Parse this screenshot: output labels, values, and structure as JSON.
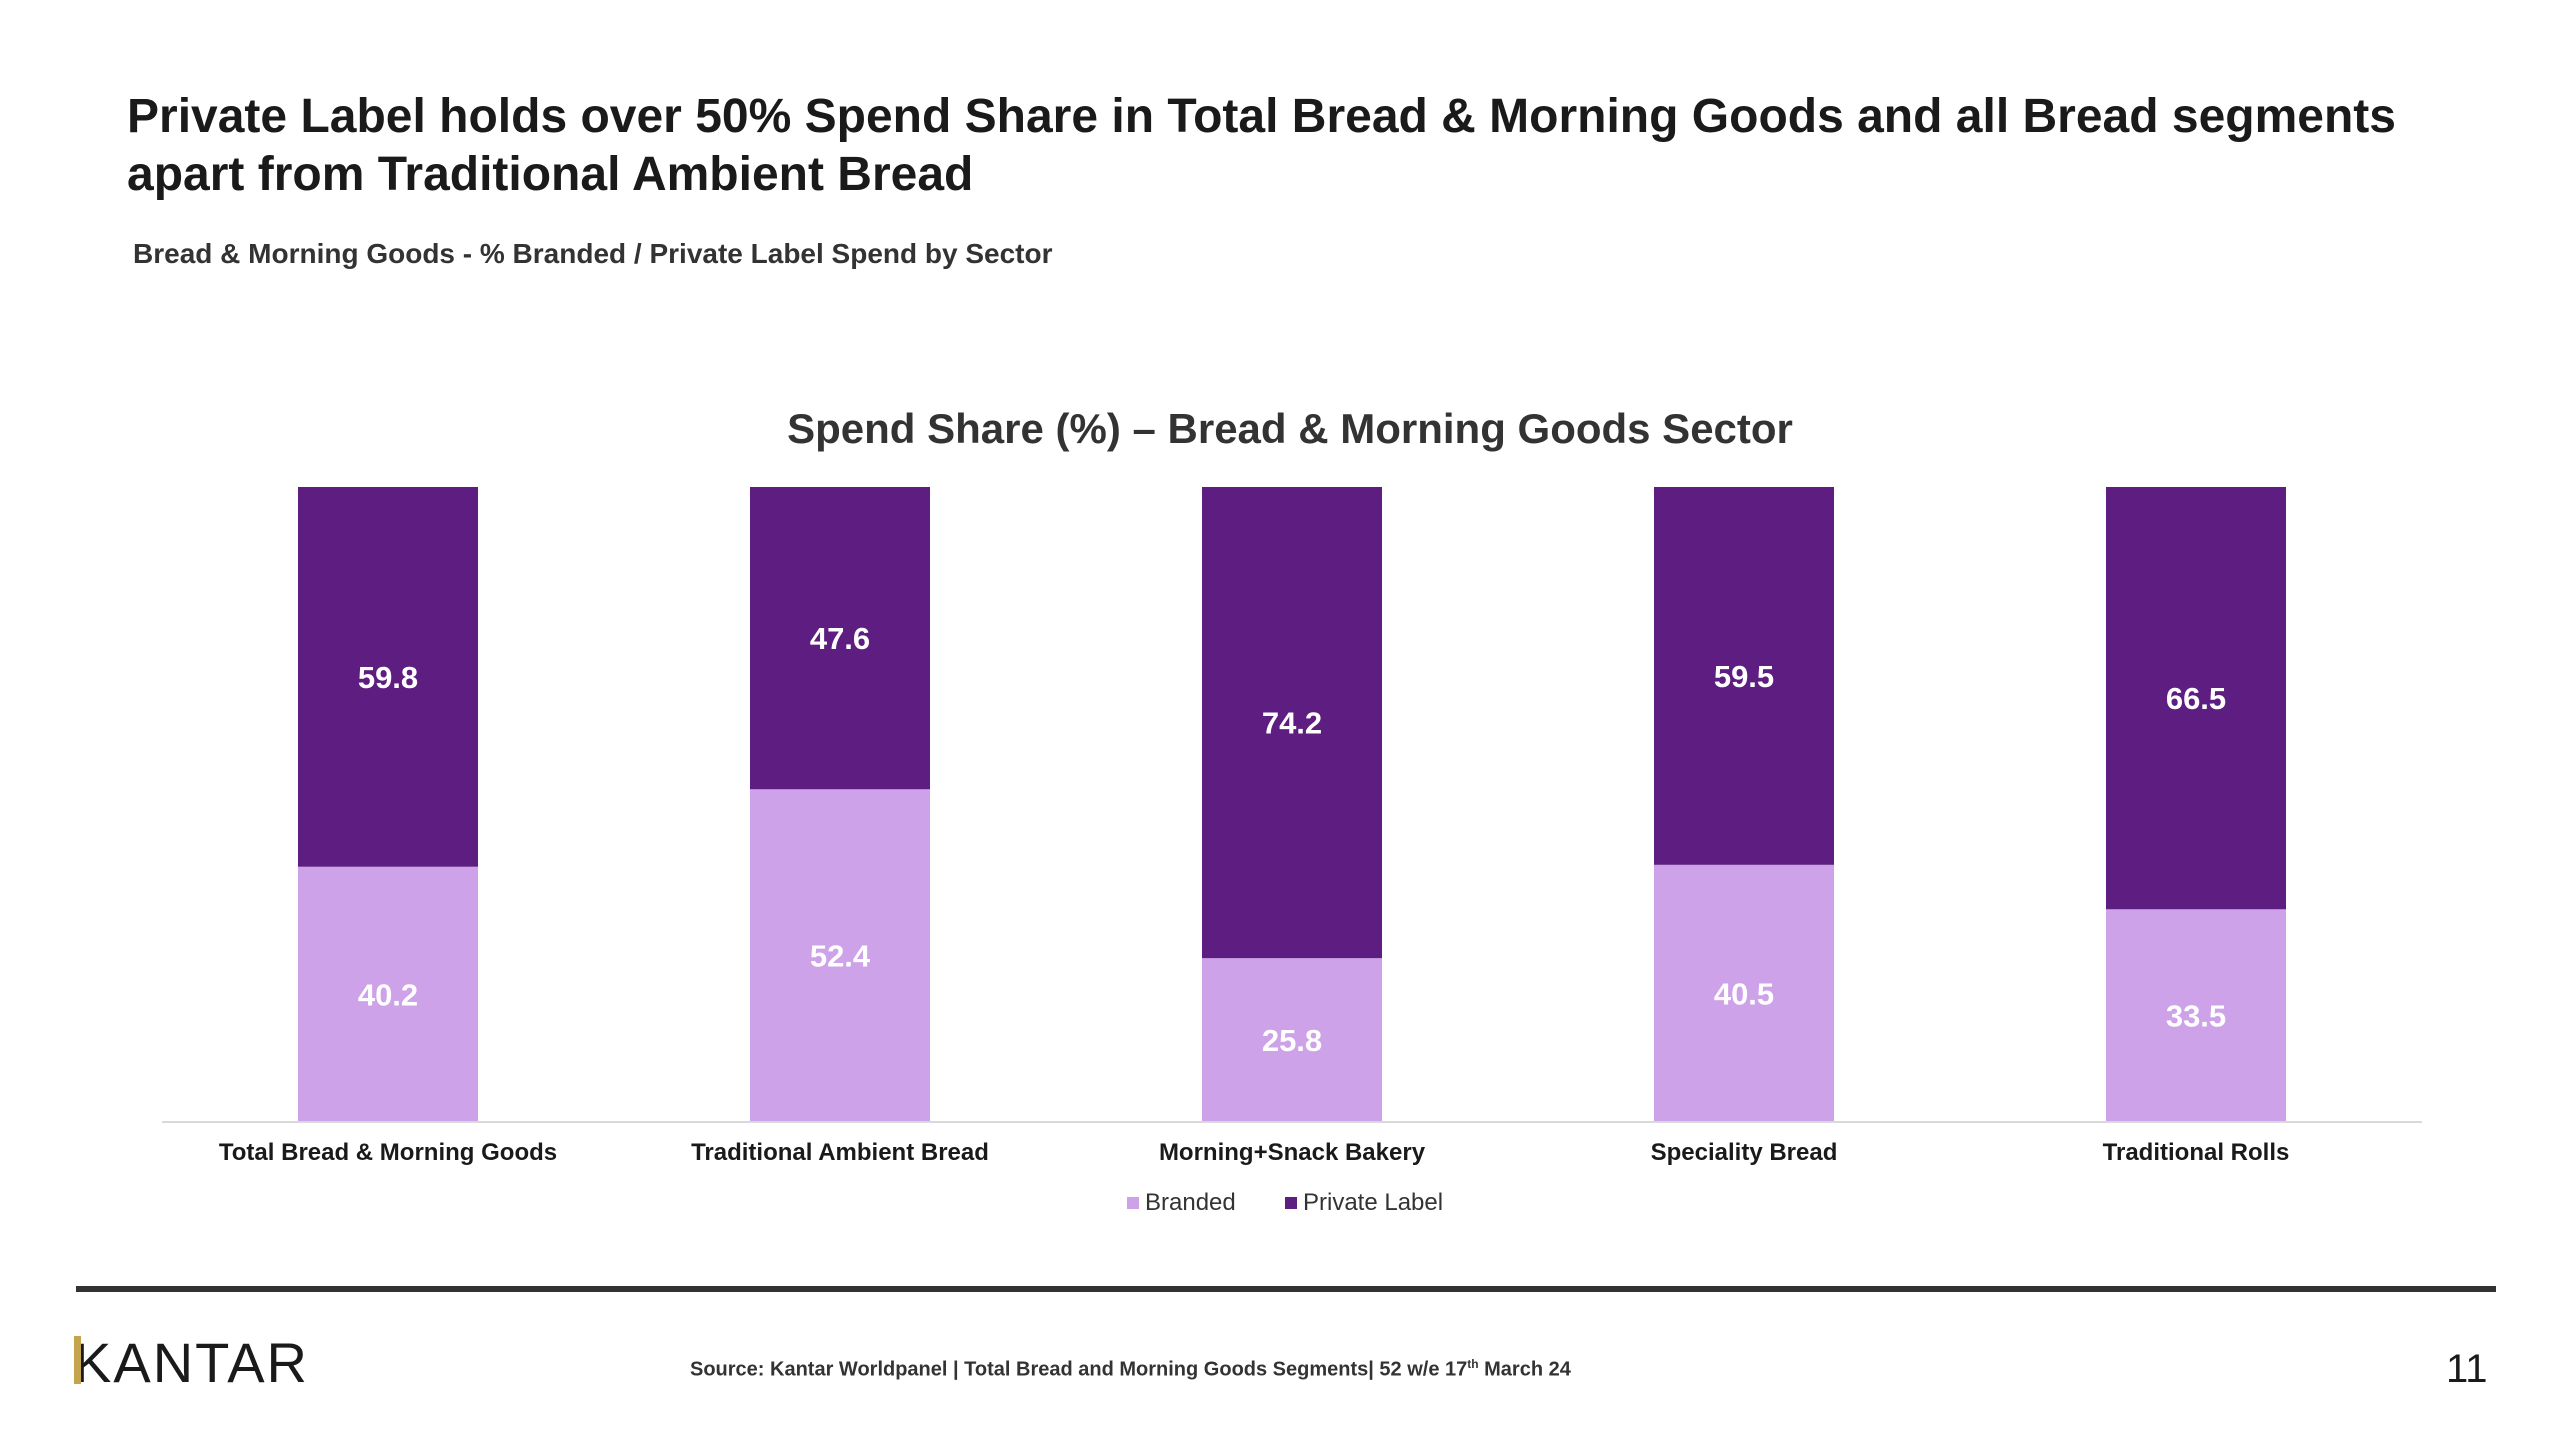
{
  "header": {
    "headline": "Private Label holds over 50% Spend Share in Total Bread & Morning Goods and all Bread segments apart from Traditional Ambient Bread",
    "subtitle": "Bread & Morning Goods - % Branded / Private Label Spend by Sector"
  },
  "chart_data": {
    "type": "bar",
    "stacked": true,
    "title": "Spend Share (%) – Bread & Morning Goods Sector",
    "categories": [
      "Total Bread & Morning Goods",
      "Traditional Ambient Bread",
      "Morning+Snack Bakery",
      "Speciality Bread",
      "Traditional Rolls"
    ],
    "series": [
      {
        "name": "Branded",
        "color": "#cea2e8",
        "values": [
          40.2,
          52.4,
          25.8,
          40.5,
          33.5
        ]
      },
      {
        "name": "Private Label",
        "color": "#5e1d80",
        "values": [
          59.8,
          47.6,
          74.2,
          59.5,
          66.5
        ]
      }
    ],
    "ylim": [
      0,
      100
    ],
    "grid": false,
    "legend_position": "bottom",
    "label_color": "#ffffff"
  },
  "footer": {
    "logo": "KANTAR",
    "source_before": "Source: Kantar Worldpanel | Total Bread and Morning Goods Segments| 52 w/e 17",
    "source_sup": "th",
    "source_after": " March 24",
    "page_number": "11"
  }
}
